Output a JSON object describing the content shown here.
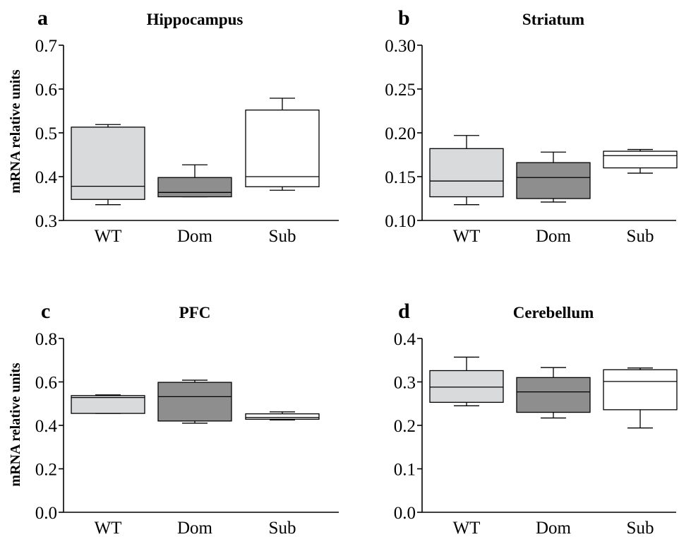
{
  "figure": {
    "ylabel": "mRNA relative units"
  },
  "chart_data": [
    {
      "type": "box",
      "panel": "a",
      "title": "Hippocampus",
      "ylabel": "mRNA relative units",
      "ylim": [
        0.3,
        0.7
      ],
      "yticks": [
        0.3,
        0.4,
        0.5,
        0.6,
        0.7
      ],
      "ytick_labels": [
        "0.3",
        "0.4",
        "0.5",
        "0.6",
        "0.7"
      ],
      "categories": [
        "WT",
        "Dom",
        "Sub"
      ],
      "colors": [
        "#d9dadc",
        "#8e8e8e",
        "#ffffff"
      ],
      "boxes": [
        {
          "min": 0.336,
          "q1": 0.348,
          "median": 0.378,
          "q3": 0.513,
          "max": 0.519
        },
        {
          "min": 0.354,
          "q1": 0.354,
          "median": 0.364,
          "q3": 0.398,
          "max": 0.427
        },
        {
          "min": 0.369,
          "q1": 0.377,
          "median": 0.4,
          "q3": 0.552,
          "max": 0.579
        }
      ]
    },
    {
      "type": "box",
      "panel": "b",
      "title": "Striatum",
      "ylabel": "",
      "ylim": [
        0.1,
        0.3
      ],
      "yticks": [
        0.1,
        0.15,
        0.2,
        0.25,
        0.3
      ],
      "ytick_labels": [
        "0.10",
        "0.15",
        "0.20",
        "0.25",
        "0.30"
      ],
      "categories": [
        "WT",
        "Dom",
        "Sub"
      ],
      "colors": [
        "#d9dadc",
        "#8e8e8e",
        "#ffffff"
      ],
      "boxes": [
        {
          "min": 0.118,
          "q1": 0.127,
          "median": 0.145,
          "q3": 0.182,
          "max": 0.197
        },
        {
          "min": 0.121,
          "q1": 0.125,
          "median": 0.149,
          "q3": 0.166,
          "max": 0.178
        },
        {
          "min": 0.154,
          "q1": 0.16,
          "median": 0.174,
          "q3": 0.179,
          "max": 0.181
        }
      ]
    },
    {
      "type": "box",
      "panel": "c",
      "title": "PFC",
      "ylabel": "mRNA relative units",
      "ylim": [
        0.0,
        0.8
      ],
      "yticks": [
        0.0,
        0.2,
        0.4,
        0.6,
        0.8
      ],
      "ytick_labels": [
        "0.0",
        "0.2",
        "0.4",
        "0.6",
        "0.8"
      ],
      "categories": [
        "WT",
        "Dom",
        "Sub"
      ],
      "colors": [
        "#d9dadc",
        "#8e8e8e",
        "#ffffff"
      ],
      "boxes": [
        {
          "min": 0.455,
          "q1": 0.455,
          "median": 0.528,
          "q3": 0.537,
          "max": 0.54
        },
        {
          "min": 0.41,
          "q1": 0.42,
          "median": 0.532,
          "q3": 0.598,
          "max": 0.608
        },
        {
          "min": 0.425,
          "q1": 0.428,
          "median": 0.436,
          "q3": 0.453,
          "max": 0.462
        }
      ]
    },
    {
      "type": "box",
      "panel": "d",
      "title": "Cerebellum",
      "ylabel": "",
      "ylim": [
        0.0,
        0.4
      ],
      "yticks": [
        0.0,
        0.1,
        0.2,
        0.3,
        0.4
      ],
      "ytick_labels": [
        "0.0",
        "0.1",
        "0.2",
        "0.3",
        "0.4"
      ],
      "categories": [
        "WT",
        "Dom",
        "Sub"
      ],
      "colors": [
        "#d9dadc",
        "#8e8e8e",
        "#ffffff"
      ],
      "boxes": [
        {
          "min": 0.245,
          "q1": 0.253,
          "median": 0.288,
          "q3": 0.326,
          "max": 0.357
        },
        {
          "min": 0.217,
          "q1": 0.23,
          "median": 0.277,
          "q3": 0.31,
          "max": 0.333
        },
        {
          "min": 0.194,
          "q1": 0.236,
          "median": 0.301,
          "q3": 0.328,
          "max": 0.332
        }
      ]
    }
  ]
}
